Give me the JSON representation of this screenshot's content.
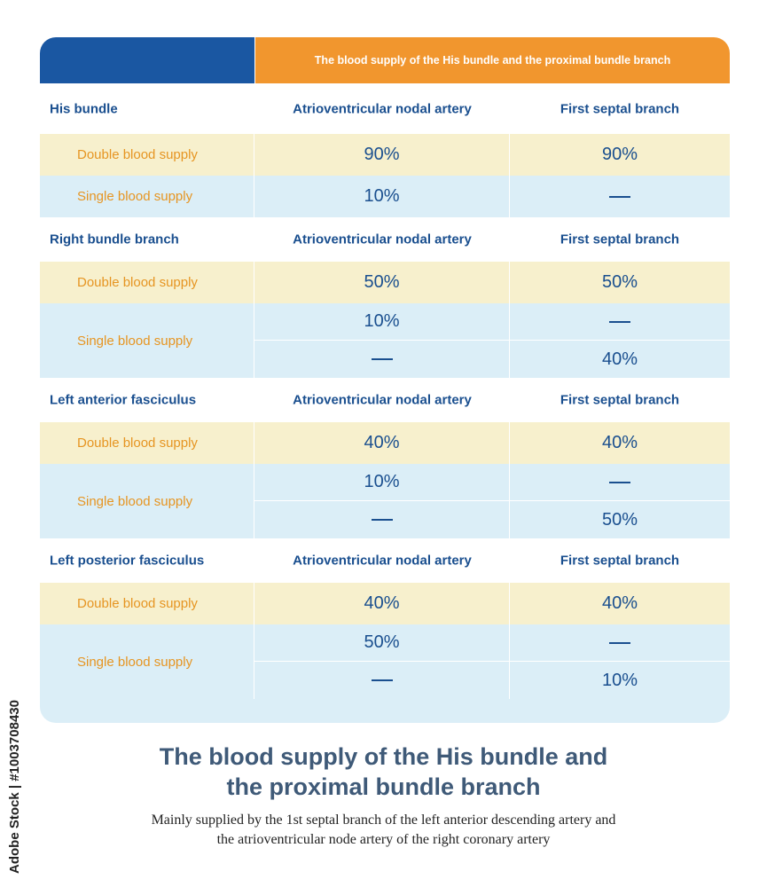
{
  "header": {
    "title": "The blood supply of the His bundle and the proximal bundle branch"
  },
  "sections": [
    {
      "name": "His bundle",
      "col2": "Atrioventricular nodal artery",
      "col3": "First septal branch",
      "double": {
        "label": "Double blood supply",
        "v2": "90%",
        "v3": "90%"
      },
      "single": {
        "label": "Single blood supply",
        "rows": [
          {
            "v2": "10%",
            "v3": "—"
          }
        ]
      }
    },
    {
      "name": "Right bundle branch",
      "col2": "Atrioventricular nodal artery",
      "col3": "First septal branch",
      "double": {
        "label": "Double blood supply",
        "v2": "50%",
        "v3": "50%"
      },
      "single": {
        "label": "Single blood supply",
        "rows": [
          {
            "v2": "10%",
            "v3": "—"
          },
          {
            "v2": "—",
            "v3": "40%"
          }
        ]
      }
    },
    {
      "name": "Left anterior fasciculus",
      "col2": "Atrioventricular nodal artery",
      "col3": "First septal branch",
      "double": {
        "label": "Double blood supply",
        "v2": "40%",
        "v3": "40%"
      },
      "single": {
        "label": "Single blood supply",
        "rows": [
          {
            "v2": "10%",
            "v3": "—"
          },
          {
            "v2": "—",
            "v3": "50%"
          }
        ]
      }
    },
    {
      "name": "Left posterior fasciculus",
      "col2": "Atrioventricular nodal artery",
      "col3": "First septal branch",
      "double": {
        "label": "Double blood supply",
        "v2": "40%",
        "v3": "40%"
      },
      "single": {
        "label": "Single blood supply",
        "rows": [
          {
            "v2": "50%",
            "v3": "—"
          },
          {
            "v2": "—",
            "v3": "10%"
          }
        ]
      }
    }
  ],
  "title_line1": "The blood supply of the His bundle and",
  "title_line2": "the proximal bundle branch",
  "subtitle_line1": "Mainly supplied by the 1st septal branch of the left anterior descending artery and",
  "subtitle_line2": "the atrioventricular node artery of the right coronary artery",
  "stock_id": "Adobe Stock | #1003708430",
  "colors": {
    "blue": "#1a57a2",
    "orange": "#f1962e",
    "yellow_row": "#f7f0cd",
    "blue_row": "#dbeef7",
    "label_orange": "#e69522",
    "text_blue": "#1a4f8f"
  }
}
